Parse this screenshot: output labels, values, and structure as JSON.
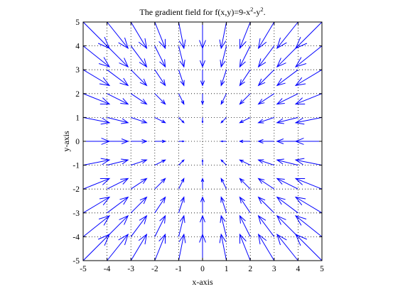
{
  "chart_data": {
    "type": "quiver",
    "title": {
      "prefix": "The gradient field for f(x,y)=9-x",
      "sup1": "2",
      "mid": "-y",
      "sup2": "2",
      "suffix": "."
    },
    "xlabel": "x-axis",
    "ylabel": "y-axis",
    "xlim": [
      -5,
      5
    ],
    "ylim": [
      -5,
      5
    ],
    "xticks": [
      -5,
      -4,
      -3,
      -2,
      -1,
      0,
      1,
      2,
      3,
      4,
      5
    ],
    "yticks": [
      -5,
      -4,
      -3,
      -2,
      -1,
      0,
      1,
      2,
      3,
      4,
      5
    ],
    "grid": true,
    "field": {
      "expression": "grad f = (-2x, -2y)",
      "grid_start": -5,
      "grid_end": 5,
      "grid_step": 1,
      "arrow_scale": 0.11
    },
    "colors": {
      "arrow": "#0000ff",
      "axes": "#000000",
      "grid": "#000000"
    }
  }
}
